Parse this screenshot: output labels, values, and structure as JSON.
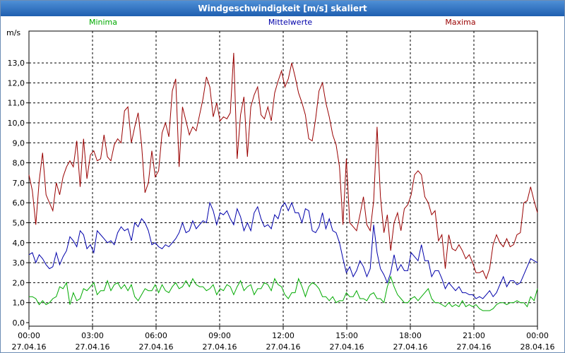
{
  "window": {
    "title": "Windgeschwindigkeit [m/s] skaliert"
  },
  "colors": {
    "min": "#00aa00",
    "mean": "#0000aa",
    "max": "#990000"
  },
  "chart_data": {
    "type": "line",
    "title": "Windgeschwindigkeit [m/s] skaliert",
    "ylabel": "m/s",
    "ylim": [
      0,
      14
    ],
    "yticks": [
      "0,0",
      "1,0",
      "2,0",
      "3,0",
      "4,0",
      "5,0",
      "6,0",
      "7,0",
      "8,0",
      "9,0",
      "10,0",
      "11,0",
      "12,0",
      "13,0"
    ],
    "xlim": [
      "27.04.16 00:00",
      "28.04.16 00:00"
    ],
    "xticks": [
      {
        "time": "00:00",
        "date": "27.04.16"
      },
      {
        "time": "03:00",
        "date": "27.04.16"
      },
      {
        "time": "06:00",
        "date": "27.04.16"
      },
      {
        "time": "09:00",
        "date": "27.04.16"
      },
      {
        "time": "12:00",
        "date": "27.04.16"
      },
      {
        "time": "15:00",
        "date": "27.04.16"
      },
      {
        "time": "18:00",
        "date": "27.04.16"
      },
      {
        "time": "21:00",
        "date": "27.04.16"
      },
      {
        "time": "00:00",
        "date": "28.04.16"
      }
    ],
    "grid": true,
    "x_interval_minutes": 10,
    "series": [
      {
        "name": "Minima",
        "color": "#00aa00",
        "values": [
          1.3,
          1.3,
          1.2,
          0.9,
          1.1,
          0.9,
          1.0,
          1.2,
          1.3,
          1.8,
          1.7,
          2.0,
          0.9,
          1.5,
          1.1,
          1.2,
          1.7,
          1.6,
          1.8,
          2.0,
          1.4,
          1.6,
          1.6,
          2.1,
          1.6,
          1.9,
          2.0,
          1.7,
          1.9,
          1.6,
          1.9,
          1.3,
          1.1,
          1.4,
          1.7,
          1.6,
          1.6,
          1.9,
          1.5,
          1.9,
          1.6,
          1.5,
          1.8,
          2.0,
          1.7,
          1.8,
          2.1,
          1.8,
          2.2,
          1.9,
          1.8,
          1.8,
          1.6,
          1.7,
          1.9,
          1.4,
          1.7,
          1.6,
          1.9,
          1.8,
          1.4,
          1.8,
          2.1,
          1.6,
          1.8,
          1.9,
          1.4,
          1.7,
          1.7,
          2.0,
          1.9,
          1.6,
          2.2,
          1.9,
          1.8,
          1.4,
          1.2,
          1.5,
          1.5,
          2.2,
          1.8,
          1.3,
          1.8,
          2.0,
          1.9,
          1.7,
          1.3,
          1.3,
          1.1,
          1.3,
          1.0,
          1.1,
          1.1,
          1.5,
          1.3,
          1.3,
          1.6,
          1.2,
          1.2,
          1.1,
          1.4,
          1.5,
          1.2,
          1.2,
          1.0,
          1.8,
          2.3,
          1.8,
          1.4,
          1.2,
          1.0,
          1.0,
          1.2,
          1.3,
          1.1,
          1.3,
          1.5,
          1.7,
          1.2,
          1.0,
          1.0,
          0.9,
          0.8,
          1.0,
          0.8,
          0.9,
          0.8,
          1.1,
          0.8,
          0.9,
          0.8,
          0.9,
          0.7,
          0.6,
          0.6,
          0.6,
          0.7,
          0.9,
          1.0,
          1.0,
          0.9,
          1.0,
          1.0,
          1.1,
          1.0,
          1.0,
          0.8,
          1.3,
          1.1,
          1.7
        ]
      },
      {
        "name": "Mittelwerte",
        "color": "#0000aa",
        "values": [
          3.4,
          3.5,
          3.0,
          3.4,
          3.2,
          2.9,
          2.7,
          2.8,
          3.5,
          2.9,
          3.3,
          3.6,
          4.3,
          4.1,
          3.8,
          4.6,
          4.4,
          3.7,
          3.9,
          3.5,
          4.6,
          4.4,
          4.2,
          4.0,
          4.1,
          3.9,
          4.5,
          4.8,
          4.6,
          4.7,
          4.1,
          5.0,
          4.8,
          5.2,
          5.0,
          4.6,
          3.9,
          4.0,
          3.8,
          3.7,
          3.9,
          3.8,
          4.0,
          4.2,
          4.5,
          5.0,
          4.5,
          4.6,
          5.1,
          4.7,
          4.9,
          5.1,
          5.0,
          6.0,
          5.6,
          4.9,
          5.5,
          5.4,
          5.6,
          5.2,
          4.9,
          5.7,
          5.3,
          4.6,
          5.0,
          4.6,
          5.5,
          5.8,
          5.2,
          4.8,
          4.9,
          4.7,
          5.4,
          5.2,
          5.8,
          6.0,
          5.6,
          6.0,
          5.5,
          5.5,
          5.0,
          5.7,
          5.6,
          4.6,
          4.5,
          4.8,
          5.5,
          4.7,
          5.2,
          4.6,
          4.5,
          4.0,
          3.2,
          2.5,
          2.8,
          2.3,
          2.6,
          3.1,
          2.8,
          2.3,
          2.7,
          4.9,
          3.5,
          2.7,
          2.4,
          2.0,
          2.5,
          3.4,
          2.6,
          2.9,
          2.6,
          2.6,
          3.5,
          3.3,
          3.1,
          3.9,
          3.1,
          3.1,
          2.3,
          2.6,
          2.6,
          2.2,
          1.7,
          2.0,
          1.8,
          1.6,
          1.8,
          1.5,
          1.5,
          1.4,
          1.4,
          1.2,
          1.3,
          1.2,
          1.4,
          1.6,
          1.3,
          1.5,
          1.9,
          2.3,
          1.8,
          2.1,
          2.1,
          1.9,
          2.0,
          2.4,
          2.8,
          3.2,
          3.1,
          3.0
        ]
      },
      {
        "name": "Maxima",
        "color": "#990000",
        "values": [
          7.4,
          6.6,
          4.9,
          7.1,
          8.5,
          6.4,
          6.0,
          5.6,
          7.0,
          6.4,
          7.3,
          7.8,
          8.1,
          7.8,
          9.1,
          6.8,
          9.2,
          7.2,
          8.4,
          8.6,
          8.1,
          8.2,
          9.4,
          8.3,
          8.1,
          8.9,
          9.2,
          9.0,
          10.6,
          10.8,
          9.0,
          9.8,
          10.5,
          8.9,
          6.5,
          7.0,
          8.6,
          7.3,
          7.6,
          9.5,
          10.0,
          9.3,
          11.6,
          12.2,
          7.8,
          10.8,
          10.1,
          9.4,
          9.8,
          9.6,
          10.4,
          11.2,
          12.3,
          11.8,
          10.3,
          11.0,
          10.1,
          10.3,
          10.2,
          10.5,
          13.5,
          8.2,
          10.4,
          11.3,
          8.3,
          10.8,
          11.4,
          11.8,
          10.4,
          10.2,
          10.8,
          10.1,
          11.5,
          12.1,
          12.6,
          11.8,
          12.2,
          13.0,
          12.3,
          11.5,
          11.0,
          10.4,
          9.2,
          9.1,
          10.2,
          11.6,
          12.0,
          11.0,
          10.3,
          9.4,
          8.9,
          7.8,
          4.9,
          8.2,
          5.0,
          4.8,
          4.6,
          5.4,
          6.3,
          4.9,
          4.6,
          6.1,
          9.8,
          6.3,
          4.5,
          5.4,
          3.6,
          5.0,
          5.5,
          4.6,
          5.7,
          5.9,
          6.4,
          7.4,
          7.6,
          7.4,
          6.3,
          6.0,
          5.4,
          5.6,
          4.1,
          4.4,
          2.7,
          4.4,
          3.7,
          3.6,
          3.9,
          3.6,
          3.2,
          3.4,
          3.0,
          2.5,
          2.5,
          2.6,
          2.2,
          2.7,
          3.9,
          4.4,
          4.0,
          3.8,
          4.2,
          3.8,
          3.9,
          4.4,
          4.5,
          6.0,
          6.1,
          6.8,
          6.1,
          5.5
        ]
      }
    ]
  }
}
